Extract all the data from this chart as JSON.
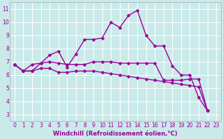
{
  "title": "",
  "xlabel": "Windchill (Refroidissement éolien,°C)",
  "ylabel": "",
  "bg_color": "#caeaea",
  "grid_color": "#ffffff",
  "line_color": "#990099",
  "markersize": 2.5,
  "linewidth": 1.0,
  "xlim": [
    -0.5,
    23.5
  ],
  "ylim": [
    2.5,
    11.5
  ],
  "xticks": [
    0,
    1,
    2,
    3,
    4,
    5,
    6,
    7,
    8,
    9,
    10,
    11,
    12,
    13,
    14,
    15,
    16,
    17,
    18,
    19,
    20,
    21,
    22,
    23
  ],
  "yticks": [
    3,
    4,
    5,
    6,
    7,
    8,
    9,
    10,
    11
  ],
  "tick_fontsize": 5.5,
  "xlabel_fontsize": 6.0,
  "lines": [
    [
      6.8,
      6.3,
      6.3,
      6.9,
      7.5,
      7.8,
      6.6,
      7.6,
      8.7,
      8.7,
      8.8,
      10.0,
      9.6,
      10.5,
      10.9,
      9.0,
      8.2,
      8.2,
      6.7,
      6.0,
      6.0,
      4.3,
      3.3
    ],
    [
      6.8,
      6.3,
      6.8,
      6.9,
      7.0,
      6.9,
      6.8,
      6.8,
      6.8,
      7.0,
      7.0,
      7.0,
      6.9,
      6.9,
      6.9,
      6.9,
      6.9,
      5.6,
      5.6,
      5.6,
      5.7,
      5.7,
      3.3
    ],
    [
      6.8,
      6.3,
      6.3,
      6.5,
      6.5,
      6.2,
      6.2,
      6.3,
      6.3,
      6.3,
      6.2,
      6.1,
      6.0,
      5.9,
      5.8,
      5.7,
      5.6,
      5.5,
      5.4,
      5.3,
      5.2,
      5.1,
      3.3
    ]
  ]
}
